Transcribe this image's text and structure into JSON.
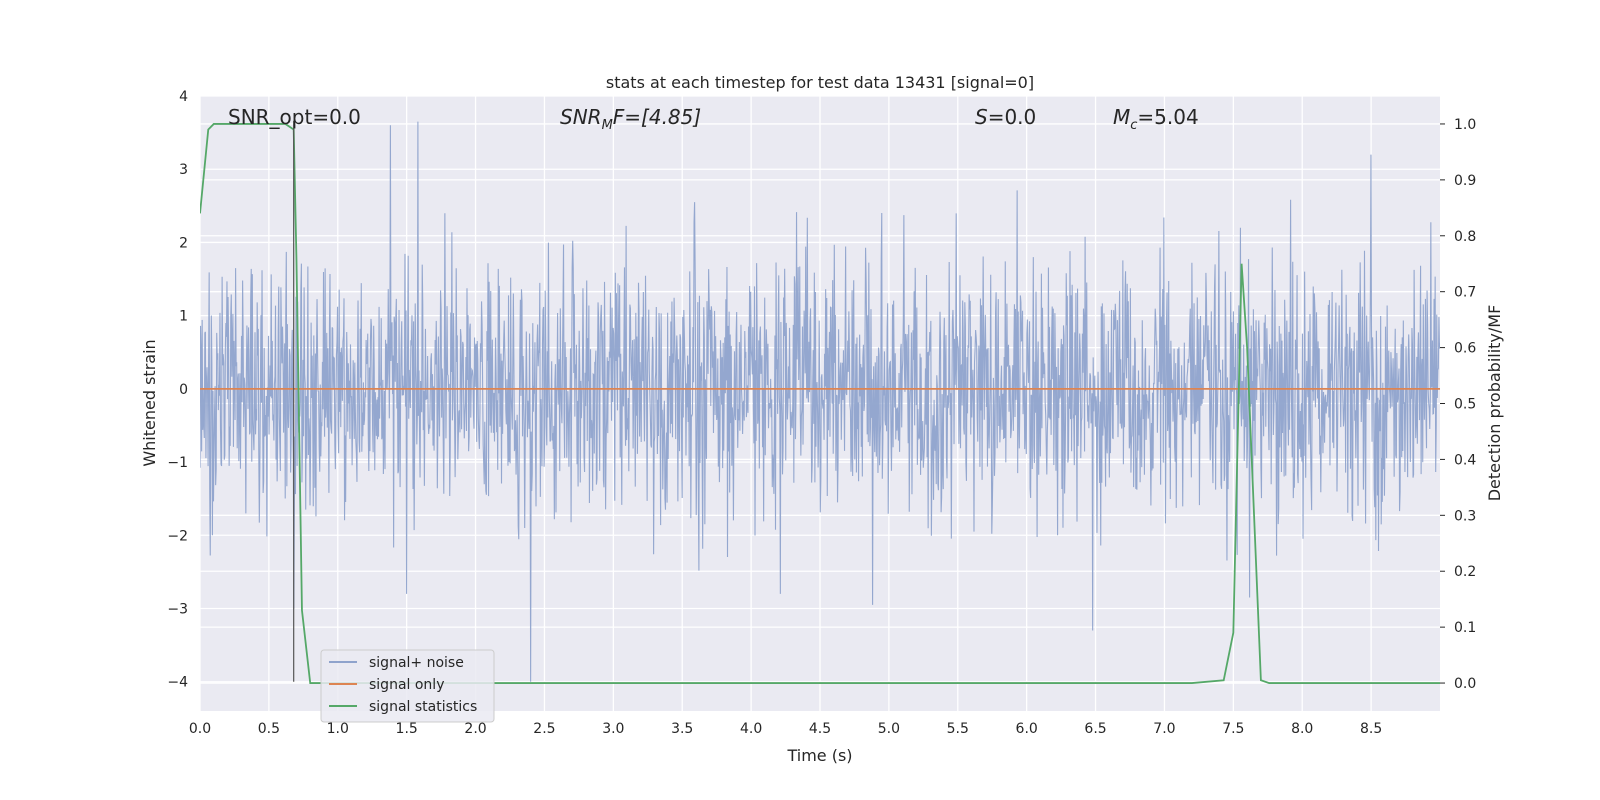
{
  "chart_data": {
    "type": "line",
    "title": "stats at each timestep for test data 13431 [signal=0]",
    "xlabel": "Time (s)",
    "ylabel": "Whitened strain",
    "y2label": "Detection probability/MF",
    "xlim": [
      0,
      9.0
    ],
    "ylim": [
      -4.4,
      4.0
    ],
    "y2lim": [
      -0.05,
      1.05
    ],
    "x_ticks": [
      0.0,
      0.5,
      1.0,
      1.5,
      2.0,
      2.5,
      3.0,
      3.5,
      4.0,
      4.5,
      5.0,
      5.5,
      6.0,
      6.5,
      7.0,
      7.5,
      8.0,
      8.5
    ],
    "x_tick_labels": [
      "0.0",
      "0.5",
      "1.0",
      "1.5",
      "2.0",
      "2.5",
      "3.0",
      "3.5",
      "4.0",
      "4.5",
      "5.0",
      "5.5",
      "6.0",
      "6.5",
      "7.0",
      "7.5",
      "8.0",
      "8.5"
    ],
    "y_ticks": [
      4,
      3,
      2,
      1,
      0,
      -1,
      -2,
      -3,
      -4
    ],
    "y_tick_labels": [
      "4",
      "3",
      "2",
      "1",
      "0",
      "−1",
      "−2",
      "−3",
      "−4"
    ],
    "y2_ticks": [
      1.0,
      0.9,
      0.8,
      0.7,
      0.6,
      0.5,
      0.4,
      0.3,
      0.2,
      0.1,
      0.0
    ],
    "y2_tick_labels": [
      "1.0",
      "0.9",
      "0.8",
      "0.7",
      "0.6",
      "0.5",
      "0.4",
      "0.3",
      "0.2",
      "0.1",
      "0.0"
    ],
    "grid": true,
    "legend_position": "lower-left",
    "annotations": {
      "snr_opt": "SNR_opt=0.0",
      "snr_mf_main": "SNR",
      "snr_mf_sub": "M",
      "snr_mf_rest": "F=[4.85]",
      "s_main": "S",
      "s_rest": "=0.0",
      "mc_main": "M",
      "mc_sub": "c",
      "mc_rest": "=5.04"
    },
    "vertical_marker_x": 0.68,
    "series": [
      {
        "name": "signal+ noise",
        "color": "#8fa3cc",
        "axis": "left",
        "kind": "noise",
        "n_samples": 2300,
        "amplitude_std": 0.85,
        "seed": 13431,
        "spikes": [
          {
            "x": 0.68,
            "y": 2.35
          },
          {
            "x": 1.38,
            "y": 3.6
          },
          {
            "x": 1.58,
            "y": 3.65
          },
          {
            "x": 0.68,
            "y": -3.0
          },
          {
            "x": 2.4,
            "y": -4.0
          },
          {
            "x": 1.5,
            "y": -2.8
          },
          {
            "x": 8.5,
            "y": 3.2
          },
          {
            "x": 6.48,
            "y": -3.3
          },
          {
            "x": 4.88,
            "y": -2.95
          },
          {
            "x": 7.55,
            "y": 2.2
          },
          {
            "x": 7.62,
            "y": -2.85
          }
        ]
      },
      {
        "name": "signal only",
        "color": "#dd8452",
        "axis": "left",
        "x": [
          0.0,
          9.0
        ],
        "y": [
          0.0,
          0.0
        ]
      },
      {
        "name": "signal statistics",
        "color": "#55a868",
        "axis": "right",
        "x": [
          0.0,
          0.06,
          0.1,
          0.3,
          0.5,
          0.62,
          0.68,
          0.7,
          0.74,
          0.8,
          0.85,
          1.0,
          7.0,
          7.2,
          7.43,
          7.5,
          7.56,
          7.6,
          7.7,
          7.76,
          8.0,
          8.5,
          9.0
        ],
        "y": [
          0.84,
          0.99,
          1.0,
          1.0,
          1.0,
          1.0,
          0.99,
          0.76,
          0.13,
          0.0,
          0.0,
          0.0,
          0.0,
          0.0,
          0.005,
          0.09,
          0.75,
          0.6,
          0.005,
          0.0,
          0.0,
          0.0,
          0.0
        ]
      }
    ]
  }
}
